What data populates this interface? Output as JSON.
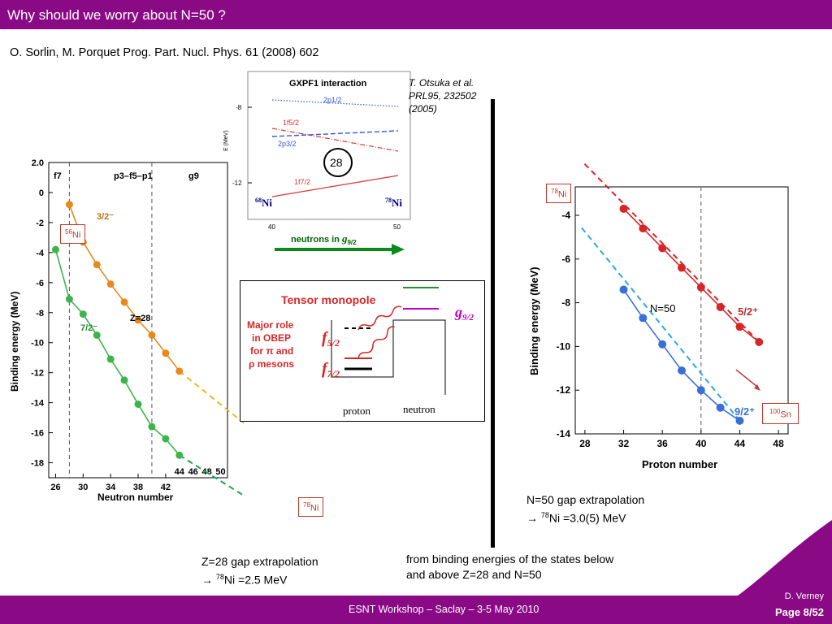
{
  "slide": {
    "title": "Why should we worry about N=50 ?",
    "reference": "O. Sorlin, M. Porquet Prog. Part. Nucl. Phys. 61 (2008) 602",
    "otsuka_ref_line1": "T. Otsuka et al.",
    "otsuka_ref_line2": "PRL95, 232502",
    "otsuka_ref_line3": "(2005)",
    "left_caption_line1": "Z=28 gap extrapolation",
    "left_caption_arrow": "→ ",
    "left_caption_mass": "78",
    "left_caption_rest": "Ni =2.5 MeV",
    "right_caption_line1": "N=50 gap extrapolation",
    "right_caption_arrow": "→ ",
    "right_caption_mass": "78",
    "right_caption_rest": "Ni =3.0(5) MeV",
    "bottom_caption_line1": "from binding energies of the states below",
    "bottom_caption_line2": "and above Z=28 and N=50",
    "footer": "ESNT Workshop –   Saclay –   3-5 May 2010",
    "author": "D. Verney",
    "page": "Page 8/52",
    "accent": "#8a0a85"
  },
  "labels": {
    "ni56_mass": "56",
    "ni56_el": "Ni",
    "ni78_left_mass": "78",
    "ni78_left_el": "Ni",
    "ni78_right_mass": "78",
    "ni78_right_el": "Ni",
    "sn100_mass": "100",
    "sn100_el": "Sn"
  },
  "gxpf1": {
    "title": "GXPF1 interaction",
    "ylabel": "E (MeV)",
    "yticks": [
      "-8",
      "-12"
    ],
    "xticks": [
      "40",
      "50"
    ],
    "orbitals": [
      "2p1/2",
      "1f5/2",
      "2p3/2",
      "1f7/2"
    ],
    "gap": "28",
    "left_nucleus_mass": "68",
    "left_nucleus_el": "Ni",
    "right_nucleus_mass": "78",
    "right_nucleus_el": "Ni",
    "arrow_label": "neutrons in ",
    "arrow_orbital": "g",
    "arrow_sub": "9/2"
  },
  "tensor": {
    "title": "Tensor monopole",
    "side_line1": "Major role",
    "side_line2": "in OBEP",
    "side_line3": "for π and",
    "side_line4": "ρ mesons",
    "f52": "f",
    "f52_sub": "5/2",
    "f72": "f",
    "f72_sub": "7/2",
    "g92": "g",
    "g92_sub": "9/2",
    "proton": "proton",
    "neutron": "neutron"
  },
  "chart_data": [
    {
      "type": "line",
      "xlabel": "Neutron number",
      "ylabel": "Binding energy (MeV)",
      "xlim": [
        25,
        51
      ],
      "ylim": [
        -19,
        2
      ],
      "xticks": [
        26,
        30,
        34,
        38,
        42
      ],
      "xticks_extra": [
        44,
        46,
        48,
        50
      ],
      "yticks": [
        0,
        -2,
        -4,
        -6,
        -8,
        -10,
        -12,
        -14,
        -16,
        -18
      ],
      "ytop_label": "2.0",
      "regions": [
        "f7",
        "p3–f5–p1",
        "g9"
      ],
      "region_lines": [
        28,
        40
      ],
      "annotation": "Z=28",
      "series": [
        {
          "name": "3/2⁻",
          "color": "#e8891d",
          "x": [
            28,
            30,
            32,
            34,
            36,
            38,
            40,
            42,
            44
          ],
          "y": [
            -0.8,
            -3.3,
            -4.8,
            -6.1,
            -7.3,
            -8.5,
            -9.5,
            -10.7,
            -11.9
          ]
        },
        {
          "name": "7/2⁻",
          "color": "#3cb44b",
          "x": [
            26,
            28,
            30,
            32,
            34,
            36,
            38,
            40,
            42,
            44
          ],
          "y": [
            -3.8,
            -7.1,
            -8.1,
            -9.5,
            -11.1,
            -12.5,
            -14.1,
            -15.6,
            -16.4,
            -17.5
          ]
        }
      ]
    },
    {
      "type": "line",
      "xlabel": "Proton number",
      "ylabel": "Binding energy (MeV)",
      "xlim": [
        27,
        49
      ],
      "ylim": [
        -14,
        -2.7
      ],
      "xticks": [
        28,
        32,
        36,
        40,
        44,
        48
      ],
      "yticks": [
        -4,
        -6,
        -8,
        -10,
        -12,
        -14
      ],
      "region_lines": [
        40
      ],
      "annotation": "N=50",
      "series": [
        {
          "name": "5/2⁺",
          "color": "#d62728",
          "x": [
            32,
            34,
            36,
            38,
            40,
            42,
            44,
            46
          ],
          "y": [
            -3.7,
            -4.6,
            -5.5,
            -6.4,
            -7.3,
            -8.2,
            -9.1,
            -9.8
          ]
        },
        {
          "name": "9/2⁺",
          "color": "#3a6fd8",
          "x": [
            32,
            34,
            36,
            38,
            40,
            42,
            44
          ],
          "y": [
            -7.4,
            -8.7,
            -9.9,
            -11.1,
            -12.0,
            -12.8,
            -13.4
          ]
        }
      ]
    }
  ]
}
